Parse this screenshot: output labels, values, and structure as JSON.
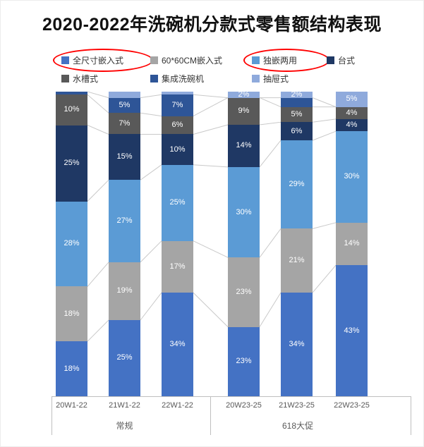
{
  "title": "2020-2022年洗碗机分款式零售额结构表现",
  "annotations": {
    "circled_legend_items": [
      "全尺寸嵌入式",
      "独嵌两用"
    ],
    "circle_color": "#FF0000"
  },
  "chart_data": {
    "type": "bar",
    "subtype": "stacked-100-percent",
    "title": "2020-2022年洗碗机分款式零售额结构表现",
    "categories": [
      "20W1-22",
      "21W1-22",
      "22W1-22",
      "20W23-25",
      "21W23-25",
      "22W23-25"
    ],
    "groups": [
      {
        "label": "常规",
        "categories": [
          "20W1-22",
          "21W1-22",
          "22W1-22"
        ]
      },
      {
        "label": "618大促",
        "categories": [
          "20W23-25",
          "21W23-25",
          "22W23-25"
        ]
      }
    ],
    "unit": "percent",
    "ylim": [
      0,
      100
    ],
    "grid": false,
    "legend_position": "top",
    "series": [
      {
        "name": "全尺寸嵌入式",
        "color": "#4472C4",
        "values": [
          18,
          25,
          34,
          23,
          34,
          43
        ],
        "data_labels": [
          "18%",
          "25%",
          "34%",
          "23%",
          "34%",
          "43%"
        ]
      },
      {
        "name": "60*60CM嵌入式",
        "color": "#A5A5A5",
        "values": [
          18,
          19,
          17,
          23,
          21,
          14
        ],
        "data_labels": [
          "18%",
          "19%",
          "17%",
          "23%",
          "21%",
          "14%"
        ]
      },
      {
        "name": "独嵌两用",
        "color": "#5B9BD5",
        "values": [
          28,
          27,
          25,
          30,
          29,
          30
        ],
        "data_labels": [
          "28%",
          "27%",
          "25%",
          "30%",
          "29%",
          "30%"
        ]
      },
      {
        "name": "台式",
        "color": "#1F3864",
        "values": [
          25,
          15,
          10,
          14,
          6,
          4
        ],
        "data_labels": [
          "25%",
          "15%",
          "10%",
          "14%",
          "6%",
          "4%"
        ]
      },
      {
        "name": "水槽式",
        "color": "#595959",
        "values": [
          10,
          7,
          6,
          9,
          5,
          4
        ],
        "data_labels": [
          "10%",
          "7%",
          "6%",
          "9%",
          "5%",
          "4%"
        ]
      },
      {
        "name": "集成洗碗机",
        "color": "#2E5597",
        "values": [
          1,
          5,
          7,
          0,
          3,
          0
        ],
        "data_labels": [
          "",
          "5%",
          "7%",
          "",
          "",
          ""
        ]
      },
      {
        "name": "抽屉式",
        "color": "#8FAADC",
        "values": [
          0,
          2,
          1,
          2,
          2,
          5
        ],
        "data_labels": [
          "",
          "",
          "",
          "2%",
          "2%",
          "5%"
        ]
      }
    ],
    "label_color": "#FFFFFF",
    "connector_line_color": "#C9C9C9",
    "axis_text_color": "#595959"
  }
}
